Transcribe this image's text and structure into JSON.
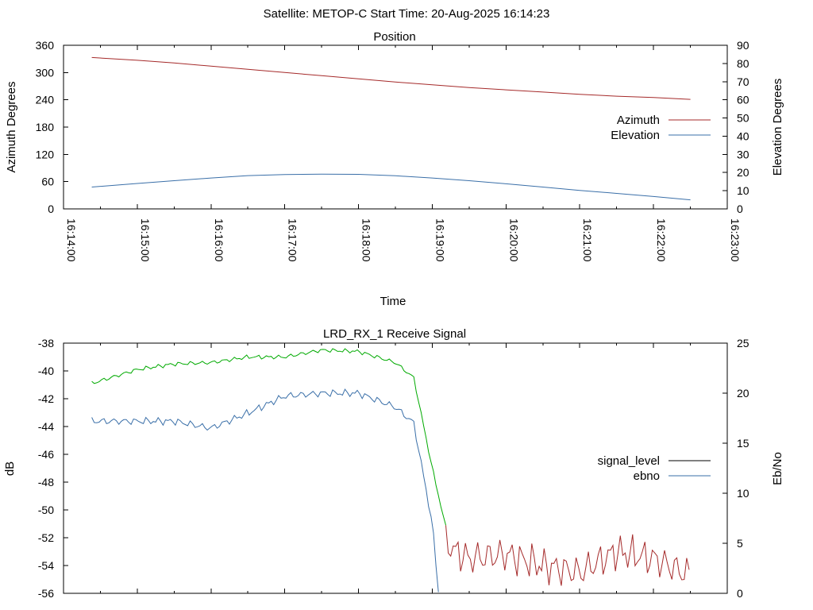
{
  "header": {
    "title": "Satellite: METOP-C    Start Time: 20-Aug-2025 16:14:23"
  },
  "colors": {
    "azimuth": "#a52a2a",
    "elevation": "#3a6fa8",
    "signal_level_legend": "#000000",
    "signal_level_strong": "#00aa00",
    "signal_level_weak": "#a52a2a",
    "ebno": "#3a6fa8"
  },
  "chart_data": [
    {
      "type": "line",
      "title": "Position",
      "xlabel": "Time",
      "ylabel": "Azimuth Degrees",
      "y2label": "Elevation Degrees",
      "xlim": [
        "16:14:00",
        "16:23:00"
      ],
      "xticks": [
        "16:14:00",
        "16:15:00",
        "16:16:00",
        "16:17:00",
        "16:18:00",
        "16:19:00",
        "16:20:00",
        "16:21:00",
        "16:22:00",
        "16:23:00"
      ],
      "ylim": [
        0,
        360
      ],
      "yticks": [
        0,
        60,
        120,
        180,
        240,
        300,
        360
      ],
      "y2lim": [
        0,
        90
      ],
      "y2ticks": [
        0,
        10,
        20,
        30,
        40,
        50,
        60,
        70,
        80,
        90
      ],
      "legend_position": "right",
      "series": [
        {
          "name": "Azimuth",
          "axis": "y",
          "x": [
            "16:14:23",
            "16:15:00",
            "16:15:30",
            "16:16:00",
            "16:16:30",
            "16:17:00",
            "16:17:30",
            "16:18:00",
            "16:18:30",
            "16:19:00",
            "16:19:30",
            "16:20:00",
            "16:20:30",
            "16:21:00",
            "16:21:30",
            "16:22:00",
            "16:22:30"
          ],
          "values": [
            333,
            327,
            321,
            314,
            307,
            300,
            293,
            286,
            279,
            273,
            267,
            262,
            257,
            252,
            248,
            245,
            241
          ]
        },
        {
          "name": "Elevation",
          "axis": "y2",
          "x": [
            "16:14:23",
            "16:15:00",
            "16:15:30",
            "16:16:00",
            "16:16:30",
            "16:17:00",
            "16:17:30",
            "16:18:00",
            "16:18:30",
            "16:19:00",
            "16:19:30",
            "16:20:00",
            "16:20:30",
            "16:21:00",
            "16:21:30",
            "16:22:00",
            "16:22:30"
          ],
          "values": [
            12,
            14,
            15.5,
            17,
            18.3,
            18.9,
            19.1,
            19,
            18.2,
            17,
            15.5,
            13.8,
            12,
            10.2,
            8.5,
            6.8,
            5
          ]
        }
      ]
    },
    {
      "type": "line",
      "title": "LRD_RX_1 Receive Signal",
      "ylabel": "dB",
      "y2label": "Eb/No",
      "xlim": [
        "16:14:00",
        "16:23:00"
      ],
      "ylim": [
        -56,
        -38
      ],
      "yticks": [
        -56,
        -54,
        -52,
        -50,
        -48,
        -46,
        -44,
        -42,
        -40,
        -38
      ],
      "y2lim": [
        0,
        25
      ],
      "y2ticks": [
        0,
        5,
        10,
        15,
        20,
        25
      ],
      "legend_position": "right",
      "series": [
        {
          "name": "signal_level",
          "axis": "y",
          "x": [
            "16:14:23",
            "16:15:00",
            "16:15:30",
            "16:16:00",
            "16:16:30",
            "16:17:00",
            "16:17:30",
            "16:18:00",
            "16:18:30",
            "16:18:45",
            "16:19:00",
            "16:19:15",
            "16:19:30",
            "16:20:00",
            "16:20:30",
            "16:21:00",
            "16:21:30",
            "16:22:00",
            "16:22:30"
          ],
          "values": [
            -40.9,
            -39.9,
            -39.5,
            -39.4,
            -39.0,
            -39.0,
            -38.5,
            -38.6,
            -39.4,
            -40.5,
            -47.0,
            -52.8,
            -53.5,
            -53.2,
            -54.0,
            -54.5,
            -53.0,
            -53.5,
            -54.7
          ]
        },
        {
          "name": "ebno",
          "axis": "y2",
          "x": [
            "16:14:23",
            "16:15:00",
            "16:15:30",
            "16:16:00",
            "16:16:30",
            "16:17:00",
            "16:17:30",
            "16:18:00",
            "16:18:30",
            "16:18:45",
            "16:19:00",
            "16:19:05"
          ],
          "values": [
            17.2,
            17.2,
            17.2,
            16.5,
            18.0,
            19.7,
            20.0,
            20.0,
            18.6,
            17.0,
            7.0,
            0.2
          ]
        }
      ]
    }
  ]
}
